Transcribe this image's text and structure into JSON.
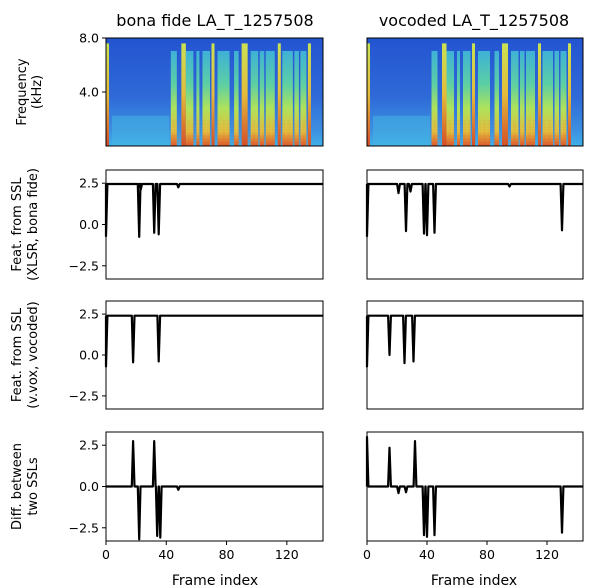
{
  "chart_data": {
    "type": "line",
    "columns": [
      {
        "title": "bona fide LA_T_1257508"
      },
      {
        "title": "vocoded LA_T_1257508"
      }
    ],
    "spectrogram": {
      "ylabel_lines": [
        "Frequency",
        "(kHz)"
      ],
      "ylim": [
        0,
        8.0
      ],
      "yticks": [
        4.0,
        8.0
      ],
      "ytick_labels": [
        "4.0",
        "8.0"
      ]
    },
    "xlabel": "Frame index",
    "xlim": [
      0,
      144
    ],
    "xticks": [
      0,
      40,
      80,
      120
    ],
    "xtick_labels": [
      "0",
      "40",
      "80",
      "120"
    ],
    "rows": [
      {
        "ylabel_lines": [
          "Feat. from SSL",
          "(XLSR, bona fide)"
        ],
        "ylim": [
          -3.3,
          3.3
        ],
        "yticks": [
          2.5,
          0.0,
          -2.5
        ],
        "ytick_labels": [
          "2.5",
          "0.0",
          "−2.5"
        ],
        "panels": [
          {
            "baseline": 2.45,
            "dips": [
              {
                "x": 0,
                "y": -0.7
              },
              {
                "x": 22,
                "y": -0.75
              },
              {
                "x": 32,
                "y": -0.5
              },
              {
                "x": 35,
                "y": -0.6
              },
              {
                "x": 23,
                "y": 2.1
              },
              {
                "x": 48,
                "y": 2.25
              }
            ]
          },
          {
            "baseline": 2.45,
            "dips": [
              {
                "x": 0,
                "y": -0.7
              },
              {
                "x": 21,
                "y": 1.9
              },
              {
                "x": 26,
                "y": -0.4
              },
              {
                "x": 29,
                "y": 2.0
              },
              {
                "x": 38,
                "y": -0.55
              },
              {
                "x": 40,
                "y": -0.65
              },
              {
                "x": 45,
                "y": -0.5
              },
              {
                "x": 130,
                "y": -0.35
              },
              {
                "x": 95,
                "y": 2.3
              }
            ]
          }
        ]
      },
      {
        "ylabel_lines": [
          "Feat. from SSL",
          "(v.vox, vocoded)"
        ],
        "ylim": [
          -3.3,
          3.3
        ],
        "yticks": [
          2.5,
          0.0,
          -2.5
        ],
        "ytick_labels": [
          "2.5",
          "0.0",
          "−2.5"
        ],
        "panels": [
          {
            "baseline": 2.4,
            "dips": [
              {
                "x": 0,
                "y": -0.7
              },
              {
                "x": 18,
                "y": -0.45
              },
              {
                "x": 35,
                "y": -0.4
              }
            ]
          },
          {
            "baseline": 2.4,
            "dips": [
              {
                "x": 0,
                "y": -0.7
              },
              {
                "x": 15,
                "y": 0.0
              },
              {
                "x": 25,
                "y": -0.5
              },
              {
                "x": 31,
                "y": -0.4
              }
            ]
          }
        ]
      },
      {
        "ylabel_lines": [
          "Diff. between",
          "two SSLs"
        ],
        "ylim": [
          -3.3,
          3.3
        ],
        "yticks": [
          2.5,
          0.0,
          -2.5
        ],
        "ytick_labels": [
          "2.5",
          "0.0",
          "−2.5"
        ],
        "panels": [
          {
            "baseline": 0.0,
            "dips": [
              {
                "x": 18,
                "y": 2.75
              },
              {
                "x": 22,
                "y": -3.2
              },
              {
                "x": 32,
                "y": 2.75
              },
              {
                "x": 34,
                "y": -3.0
              },
              {
                "x": 36,
                "y": -3.1
              },
              {
                "x": 48,
                "y": -0.2
              }
            ]
          },
          {
            "baseline": 0.0,
            "dips": [
              {
                "x": 0,
                "y": 3.0
              },
              {
                "x": 15,
                "y": 2.35
              },
              {
                "x": 21,
                "y": -0.4
              },
              {
                "x": 26,
                "y": -0.35
              },
              {
                "x": 32,
                "y": 2.75
              },
              {
                "x": 38,
                "y": -2.95
              },
              {
                "x": 40,
                "y": -3.05
              },
              {
                "x": 45,
                "y": -2.95
              },
              {
                "x": 130,
                "y": -2.8
              }
            ]
          }
        ]
      }
    ],
    "spectrogram_colors": {
      "background": "#2f63d8",
      "low": "#3aa0e8",
      "mid": "#49d4b4",
      "high": "#c8ee4a",
      "peak": "#f2b024",
      "max": "#e0481c"
    }
  }
}
